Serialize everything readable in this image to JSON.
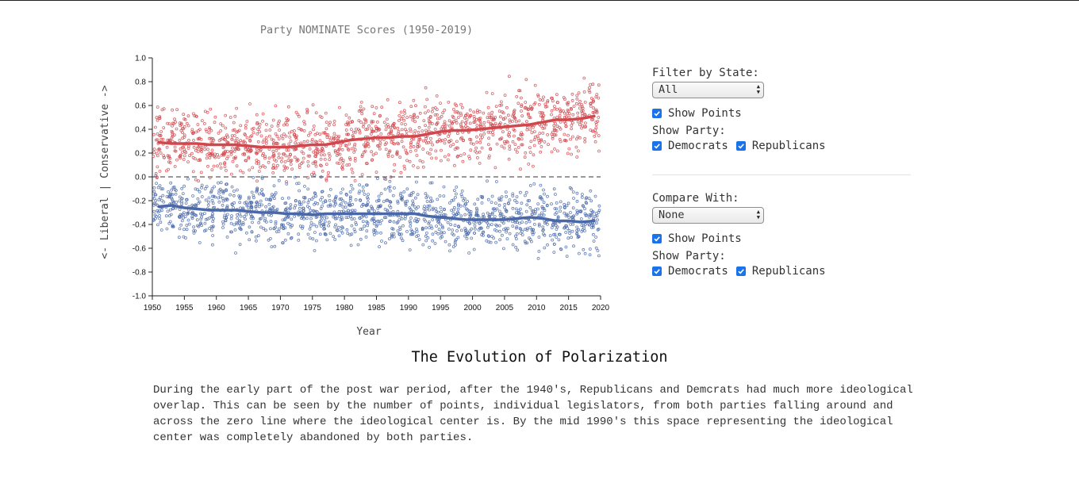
{
  "chart_data": {
    "type": "scatter",
    "title": "Party NOMINATE Scores (1950-2019)",
    "xlabel": "Year",
    "ylabel": "<- Liberal | Conservative ->",
    "xlim": [
      1950,
      2020
    ],
    "ylim": [
      -1.0,
      1.0
    ],
    "x_ticks": [
      "1950",
      "1955",
      "1960",
      "1965",
      "1970",
      "1975",
      "1980",
      "1985",
      "1990",
      "1995",
      "2000",
      "2005",
      "2010",
      "2015",
      "2020"
    ],
    "y_ticks": [
      "1.0",
      "0.8",
      "0.6",
      "0.4",
      "0.2",
      "0.0",
      "-0.2",
      "-0.4",
      "-0.6",
      "-0.8",
      "-1.0"
    ],
    "reference_line": {
      "y": 0.0,
      "style": "dashed"
    },
    "series": [
      {
        "party": "Republicans",
        "color": "#d0484e",
        "mean_line": {
          "x": [
            1951,
            1953,
            1955,
            1957,
            1959,
            1961,
            1963,
            1965,
            1967,
            1969,
            1971,
            1973,
            1975,
            1977,
            1979,
            1981,
            1983,
            1985,
            1987,
            1989,
            1991,
            1993,
            1995,
            1997,
            1999,
            2001,
            2003,
            2005,
            2007,
            2009,
            2011,
            2013,
            2015,
            2017,
            2019
          ],
          "y": [
            0.29,
            0.28,
            0.28,
            0.28,
            0.27,
            0.27,
            0.27,
            0.26,
            0.25,
            0.25,
            0.25,
            0.26,
            0.27,
            0.27,
            0.29,
            0.31,
            0.32,
            0.33,
            0.33,
            0.34,
            0.34,
            0.36,
            0.38,
            0.39,
            0.39,
            0.4,
            0.41,
            0.42,
            0.43,
            0.44,
            0.46,
            0.48,
            0.48,
            0.49,
            0.51
          ]
        }
      },
      {
        "party": "Democrats",
        "color": "#4a68a8",
        "mean_line": {
          "x": [
            1951,
            1953,
            1955,
            1957,
            1959,
            1961,
            1963,
            1965,
            1967,
            1969,
            1971,
            1973,
            1975,
            1977,
            1979,
            1981,
            1983,
            1985,
            1987,
            1989,
            1991,
            1993,
            1995,
            1997,
            1999,
            2001,
            2003,
            2005,
            2007,
            2009,
            2011,
            2013,
            2015,
            2017,
            2019
          ],
          "y": [
            -0.25,
            -0.24,
            -0.26,
            -0.27,
            -0.28,
            -0.28,
            -0.28,
            -0.29,
            -0.3,
            -0.3,
            -0.31,
            -0.31,
            -0.32,
            -0.31,
            -0.31,
            -0.31,
            -0.31,
            -0.31,
            -0.31,
            -0.31,
            -0.31,
            -0.33,
            -0.34,
            -0.35,
            -0.36,
            -0.36,
            -0.36,
            -0.36,
            -0.35,
            -0.34,
            -0.35,
            -0.37,
            -0.37,
            -0.38,
            -0.37
          ]
        }
      }
    ]
  },
  "controls": {
    "filter_label": "Filter by State:",
    "filter_value": "All",
    "show_points_label": "Show Points",
    "show_party_label": "Show Party:",
    "democrats_label": "Democrats",
    "republicans_label": "Republicans",
    "compare_label": "Compare With:",
    "compare_value": "None"
  },
  "article": {
    "heading": "The Evolution of Polarization",
    "body": "During the early part of the post war period, after the 1940's, Republicans and Demcrats had much more ideological overlap. This can be seen by the number of points, individual legislators, from both parties falling around and across the zero line where the ideological center is. By the mid 1990's this space representing the ideological center was completely abandoned by both parties."
  }
}
